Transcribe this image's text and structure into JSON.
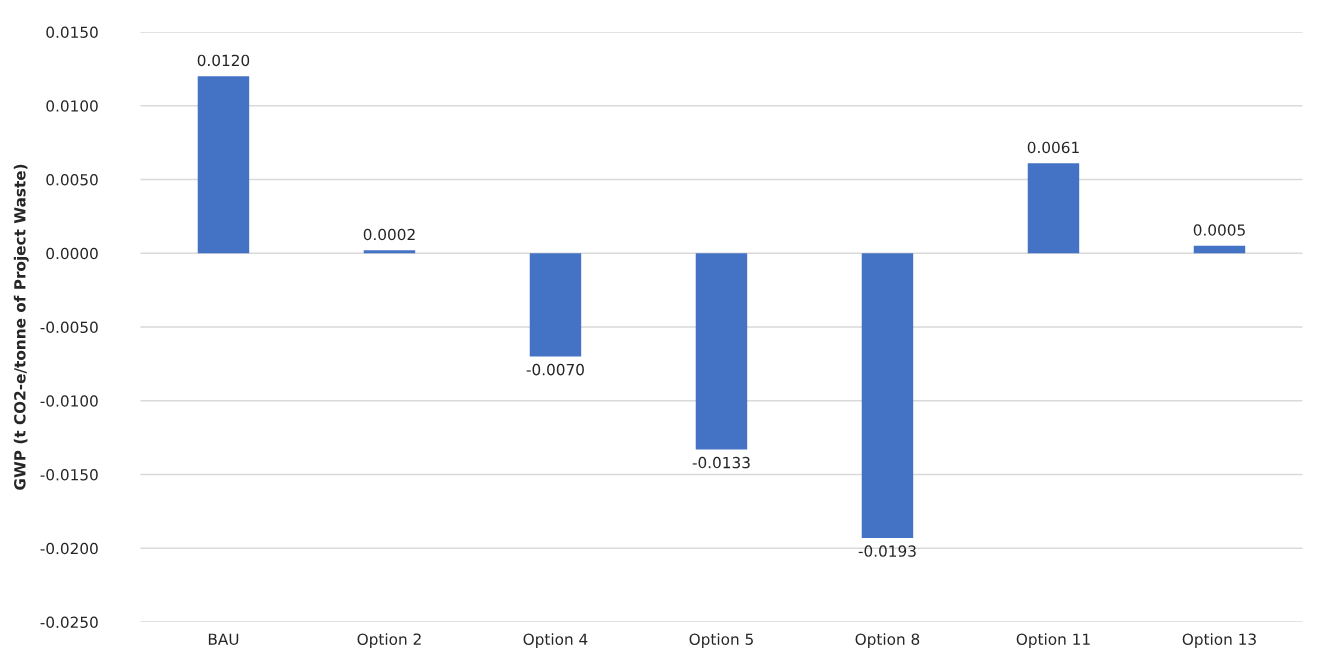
{
  "chart_data": {
    "type": "bar",
    "ylabel": "GWP (t CO2-e/tonne of Project Waste)",
    "categories": [
      "BAU",
      "Option 2",
      "Option 4",
      "Option 5",
      "Option 8",
      "Option 11",
      "Option 13"
    ],
    "values": [
      0.012,
      0.0002,
      -0.007,
      -0.0133,
      -0.0193,
      0.0061,
      0.0005
    ],
    "value_labels": [
      "0.0120",
      "0.0002",
      "-0.0070",
      "-0.0133",
      "-0.0193",
      "0.0061",
      "0.0005"
    ],
    "color": "#4472c4",
    "ylim": [
      -0.025,
      0.015
    ],
    "yticks": [
      {
        "value": -0.025,
        "label": "-0.0250"
      },
      {
        "value": -0.02,
        "label": "-0.0200"
      },
      {
        "value": -0.015,
        "label": "-0.0150"
      },
      {
        "value": -0.01,
        "label": "-0.0100"
      },
      {
        "value": -0.005,
        "label": "-0.0050"
      },
      {
        "value": 0.0,
        "label": "0.0000"
      },
      {
        "value": 0.005,
        "label": "0.0050"
      },
      {
        "value": 0.01,
        "label": "0.0100"
      },
      {
        "value": 0.015,
        "label": "0.0150"
      }
    ],
    "grid": "y",
    "legend": false
  }
}
